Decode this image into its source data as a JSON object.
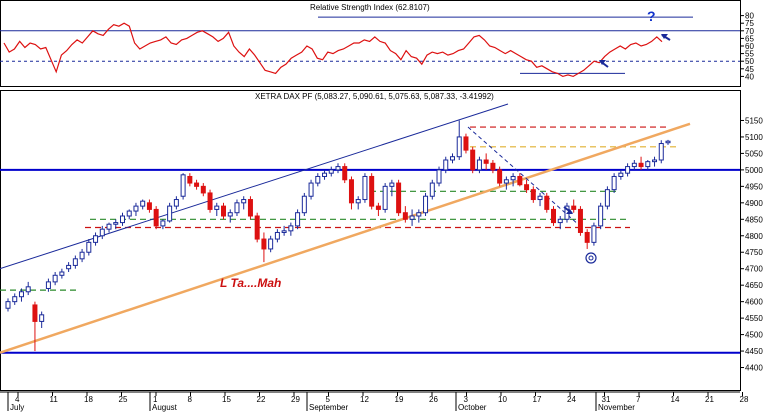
{
  "colors": {
    "rsi_line": "#dd1111",
    "up_candle": "#1a2a9a",
    "down_candle": "#dd1111",
    "channel_line": "#1a2a9a",
    "trend_line": "#f0a860",
    "support_dashed_red": "#cc1111",
    "support_dashed_green": "#2a8a2a",
    "resistance_dashed_yellow": "#e0b030",
    "level_blue": "#0000cc"
  },
  "chart_data": [
    {
      "type": "line",
      "title": "Relative Strength Index (62.8107)",
      "ylim": [
        35,
        85
      ],
      "yticks": [
        "80",
        "75",
        "70",
        "65",
        "60",
        "55",
        "50",
        "45",
        "40"
      ],
      "reference_lines": [
        70,
        50
      ],
      "values": [
        62,
        56,
        58,
        63,
        59,
        62,
        61,
        58,
        59,
        51,
        43,
        54,
        57,
        61,
        64,
        62,
        66,
        70,
        68,
        67,
        71,
        74,
        73,
        75,
        73,
        62,
        58,
        60,
        62,
        63,
        64,
        66,
        62,
        61,
        64,
        65,
        67,
        69,
        70,
        68,
        66,
        63,
        65,
        69,
        60,
        56,
        53,
        58,
        54,
        49,
        44,
        43,
        42,
        46,
        48,
        52,
        54,
        56,
        60,
        58,
        52,
        51,
        56,
        55,
        57,
        58,
        60,
        62,
        62,
        64,
        63,
        66,
        63,
        62,
        57,
        55,
        51,
        57,
        53,
        52,
        48,
        54,
        56,
        55,
        56,
        54,
        55,
        57,
        58,
        62,
        66,
        67,
        64,
        60,
        59,
        57,
        55,
        57,
        55,
        53,
        51,
        50,
        46,
        47,
        45,
        43,
        42,
        40,
        41,
        40,
        42,
        44,
        47,
        50,
        49,
        53,
        56,
        58,
        60,
        58,
        61,
        62,
        60,
        61,
        63,
        66,
        62.8
      ],
      "annotation": "?"
    },
    {
      "type": "candlestick",
      "title": "XETRA DAX PF (5,083.27, 5,090.61, 5,075.63, 5,087.33, -3.41992)",
      "ylim": [
        4350,
        5200
      ],
      "yticks": [
        "5150",
        "5100",
        "5050",
        "5000",
        "4950",
        "4900",
        "4850",
        "4800",
        "4750",
        "4700",
        "4650",
        "4600",
        "4550",
        "4500",
        "4450",
        "4400"
      ],
      "x_tick_labels": [
        "4",
        "11",
        "18",
        "25",
        "1",
        "8",
        "15",
        "22",
        "29",
        "5",
        "12",
        "19",
        "26",
        "3",
        "10",
        "17",
        "24",
        "31",
        "7",
        "14",
        "21",
        "28"
      ],
      "month_labels": [
        "July",
        "August",
        "September",
        "October",
        "November"
      ],
      "candles": [
        [
          4580,
          4610,
          4570,
          4600
        ],
        [
          4600,
          4625,
          4590,
          4615
        ],
        [
          4615,
          4640,
          4600,
          4630
        ],
        [
          4630,
          4660,
          4620,
          4645
        ],
        [
          4590,
          4600,
          4450,
          4540
        ],
        [
          4540,
          4570,
          4520,
          4560
        ],
        [
          4640,
          4670,
          4630,
          4660
        ],
        [
          4660,
          4690,
          4650,
          4680
        ],
        [
          4680,
          4700,
          4670,
          4690
        ],
        [
          4700,
          4720,
          4690,
          4710
        ],
        [
          4710,
          4740,
          4700,
          4730
        ],
        [
          4730,
          4760,
          4720,
          4750
        ],
        [
          4750,
          4790,
          4740,
          4780
        ],
        [
          4780,
          4810,
          4770,
          4800
        ],
        [
          4800,
          4830,
          4790,
          4820
        ],
        [
          4820,
          4840,
          4810,
          4835
        ],
        [
          4835,
          4850,
          4820,
          4840
        ],
        [
          4840,
          4870,
          4830,
          4860
        ],
        [
          4860,
          4880,
          4850,
          4875
        ],
        [
          4875,
          4900,
          4860,
          4890
        ],
        [
          4890,
          4910,
          4880,
          4905
        ],
        [
          4900,
          4910,
          4870,
          4880
        ],
        [
          4880,
          4890,
          4820,
          4830
        ],
        [
          4830,
          4850,
          4820,
          4845
        ],
        [
          4845,
          4900,
          4840,
          4890
        ],
        [
          4890,
          4920,
          4880,
          4910
        ],
        [
          4920,
          4990,
          4910,
          4985
        ],
        [
          4980,
          4990,
          4950,
          4960
        ],
        [
          4960,
          4970,
          4940,
          4950
        ],
        [
          4950,
          4960,
          4920,
          4930
        ],
        [
          4930,
          4940,
          4870,
          4880
        ],
        [
          4880,
          4900,
          4860,
          4890
        ],
        [
          4890,
          4900,
          4850,
          4860
        ],
        [
          4860,
          4880,
          4840,
          4870
        ],
        [
          4870,
          4910,
          4860,
          4900
        ],
        [
          4900,
          4920,
          4880,
          4910
        ],
        [
          4910,
          4920,
          4850,
          4860
        ],
        [
          4860,
          4870,
          4780,
          4790
        ],
        [
          4790,
          4810,
          4720,
          4760
        ],
        [
          4760,
          4800,
          4750,
          4790
        ],
        [
          4790,
          4820,
          4780,
          4810
        ],
        [
          4810,
          4830,
          4800,
          4815
        ],
        [
          4815,
          4840,
          4800,
          4830
        ],
        [
          4830,
          4880,
          4820,
          4870
        ],
        [
          4870,
          4930,
          4860,
          4920
        ],
        [
          4920,
          4970,
          4910,
          4960
        ],
        [
          4960,
          4990,
          4950,
          4980
        ],
        [
          4980,
          5000,
          4970,
          4990
        ],
        [
          4990,
          5010,
          4980,
          5000
        ],
        [
          5000,
          5020,
          4990,
          5010
        ],
        [
          5010,
          5020,
          4960,
          4970
        ],
        [
          4970,
          4980,
          4880,
          4900
        ],
        [
          4900,
          4920,
          4880,
          4910
        ],
        [
          4910,
          4990,
          4900,
          4980
        ],
        [
          4980,
          4990,
          4880,
          4890
        ],
        [
          4890,
          4900,
          4860,
          4880
        ],
        [
          4880,
          4960,
          4870,
          4950
        ],
        [
          4950,
          4970,
          4920,
          4960
        ],
        [
          4960,
          4970,
          4860,
          4870
        ],
        [
          4870,
          4890,
          4840,
          4850
        ],
        [
          4850,
          4880,
          4830,
          4860
        ],
        [
          4860,
          4880,
          4840,
          4870
        ],
        [
          4870,
          4930,
          4860,
          4920
        ],
        [
          4920,
          4970,
          4910,
          4960
        ],
        [
          4960,
          5010,
          4950,
          5000
        ],
        [
          5000,
          5040,
          4990,
          5030
        ],
        [
          5030,
          5050,
          5020,
          5040
        ],
        [
          5040,
          5150,
          5030,
          5100
        ],
        [
          5100,
          5110,
          5050,
          5060
        ],
        [
          5060,
          5070,
          4990,
          5000
        ],
        [
          5000,
          5040,
          4990,
          5030
        ],
        [
          5030,
          5050,
          5000,
          5020
        ],
        [
          5020,
          5030,
          4990,
          5000
        ],
        [
          5000,
          5010,
          4950,
          4960
        ],
        [
          4960,
          4980,
          4940,
          4970
        ],
        [
          4970,
          4990,
          4950,
          4980
        ],
        [
          4980,
          4990,
          4950,
          4955
        ],
        [
          4955,
          4970,
          4930,
          4940
        ],
        [
          4940,
          4950,
          4900,
          4910
        ],
        [
          4910,
          4930,
          4890,
          4920
        ],
        [
          4920,
          4930,
          4870,
          4880
        ],
        [
          4880,
          4890,
          4830,
          4840
        ],
        [
          4840,
          4860,
          4820,
          4850
        ],
        [
          4850,
          4900,
          4840,
          4890
        ],
        [
          4890,
          4910,
          4870,
          4880
        ],
        [
          4880,
          4890,
          4800,
          4810
        ],
        [
          4810,
          4820,
          4760,
          4780
        ],
        [
          4780,
          4840,
          4770,
          4830
        ],
        [
          4830,
          4900,
          4820,
          4890
        ],
        [
          4890,
          4950,
          4880,
          4940
        ],
        [
          4940,
          4990,
          4930,
          4980
        ],
        [
          4980,
          5000,
          4970,
          4990
        ],
        [
          4990,
          5020,
          4980,
          5010
        ],
        [
          5010,
          5030,
          5000,
          5020
        ],
        [
          5020,
          5040,
          5000,
          5010
        ],
        [
          5010,
          5030,
          5000,
          5025
        ],
        [
          5025,
          5040,
          5010,
          5030
        ],
        [
          5030,
          5090,
          5020,
          5080
        ],
        [
          5083,
          5091,
          5076,
          5087
        ]
      ],
      "horizontal_lines": [
        {
          "price": 5000,
          "style": "solid",
          "color_key": "level_blue"
        },
        {
          "price": 4445,
          "style": "solid",
          "color_key": "level_blue"
        },
        {
          "price": 5130,
          "style": "dashed",
          "color_key": "support_dashed_red"
        },
        {
          "price": 5070,
          "style": "dashed",
          "color_key": "resistance_dashed_yellow"
        },
        {
          "price": 4935,
          "style": "dashed",
          "color_key": "support_dashed_green"
        },
        {
          "price": 4850,
          "style": "dashed",
          "color_key": "support_dashed_green"
        },
        {
          "price": 4825,
          "style": "dashed",
          "color_key": "support_dashed_red"
        },
        {
          "price": 4635,
          "style": "dashed",
          "color_key": "support_dashed_green"
        }
      ],
      "annotation": "L Ta....Mah"
    }
  ]
}
